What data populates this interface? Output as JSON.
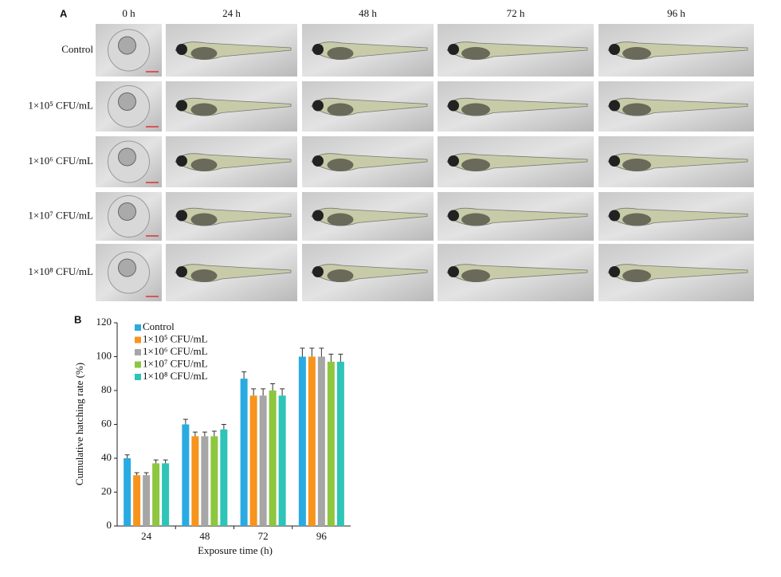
{
  "panel_a": {
    "label": "A",
    "columns": [
      "0 h",
      "24 h",
      "48 h",
      "72 h",
      "96 h"
    ],
    "rows": [
      "Control",
      "1×10⁵ CFU/mL",
      "1×10⁶ CFU/mL",
      "1×10⁷ CFU/mL",
      "1×10⁸ CFU/mL"
    ]
  },
  "chart_data": {
    "type": "bar",
    "panel_label": "B",
    "ylabel": "Cumulative hatching rate (%)",
    "xlabel": "Exposure time (h)",
    "categories": [
      "24",
      "48",
      "72",
      "96"
    ],
    "series": [
      {
        "name": "Control",
        "color": "#29abe2",
        "values": [
          40,
          60,
          87,
          100
        ],
        "errors": [
          2,
          3,
          4,
          5
        ]
      },
      {
        "name": "1×10⁵ CFU/mL",
        "color": "#f7941d",
        "values": [
          30,
          53,
          77,
          100
        ],
        "errors": [
          1.5,
          2.5,
          4,
          5
        ]
      },
      {
        "name": "1×10⁶ CFU/mL",
        "color": "#a6a6a6",
        "values": [
          30,
          53,
          77,
          100
        ],
        "errors": [
          1.5,
          2.5,
          4,
          5
        ]
      },
      {
        "name": "1×10⁷ CFU/mL",
        "color": "#8dc63f",
        "values": [
          37,
          53,
          80,
          97
        ],
        "errors": [
          2,
          3,
          4,
          4.5
        ]
      },
      {
        "name": "1×10⁸ CFU/mL",
        "color": "#2ec4b6",
        "values": [
          37,
          57,
          77,
          97
        ],
        "errors": [
          2,
          3,
          4,
          4.5
        ]
      }
    ],
    "ylim": [
      0,
      120
    ],
    "yticks": [
      0,
      20,
      40,
      60,
      80,
      100,
      120
    ],
    "legend": "upper-left"
  }
}
